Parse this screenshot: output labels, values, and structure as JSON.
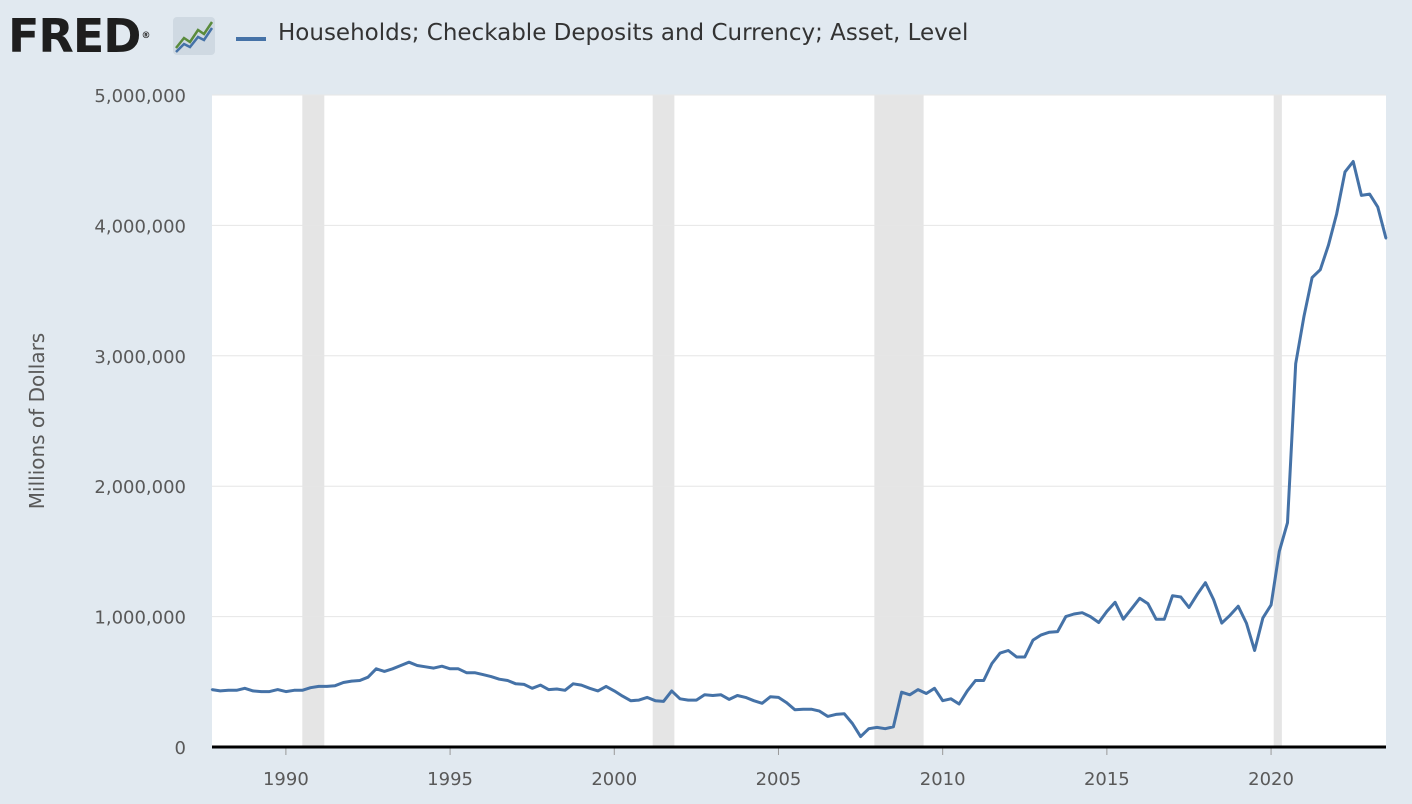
{
  "header": {
    "logo_text": "FRED",
    "logo_mark": "®",
    "logo_icon": "line-chart-icon",
    "series_title": "Households; Checkable Deposits and Currency; Asset, Level"
  },
  "colors": {
    "background": "#e1e9f0",
    "plot_background": "#ffffff",
    "series": "#4572a7",
    "recession": "#e5e5e5",
    "gridline": "#e6e6e6",
    "axis": "#000000"
  },
  "chart_data": {
    "type": "line",
    "title": "Households; Checkable Deposits and Currency; Asset, Level",
    "xlabel": "",
    "ylabel": "Millions of Dollars",
    "xlim": [
      1987.75,
      2023.5
    ],
    "ylim": [
      0,
      5000000
    ],
    "grid": true,
    "legend": "top-left",
    "x_ticks": [
      1990,
      1995,
      2000,
      2005,
      2010,
      2015,
      2020
    ],
    "y_ticks": [
      0,
      1000000,
      2000000,
      3000000,
      4000000,
      5000000
    ],
    "y_tick_labels": [
      "0",
      "1,000,000",
      "2,000,000",
      "3,000,000",
      "4,000,000",
      "5,000,000"
    ],
    "recessions": [
      [
        1990.5,
        1991.17
      ],
      [
        2001.17,
        2001.83
      ],
      [
        2007.92,
        2009.42
      ],
      [
        2020.08,
        2020.33
      ]
    ],
    "series": [
      {
        "name": "Households; Checkable Deposits and Currency; Asset, Level",
        "x": [
          1987.75,
          1988.0,
          1988.25,
          1988.5,
          1988.75,
          1989.0,
          1989.25,
          1989.5,
          1989.75,
          1990.0,
          1990.25,
          1990.5,
          1990.75,
          1991.0,
          1991.25,
          1991.5,
          1991.75,
          1992.0,
          1992.25,
          1992.5,
          1992.75,
          1993.0,
          1993.25,
          1993.5,
          1993.75,
          1994.0,
          1994.25,
          1994.5,
          1994.75,
          1995.0,
          1995.25,
          1995.5,
          1995.75,
          1996.0,
          1996.25,
          1996.5,
          1996.75,
          1997.0,
          1997.25,
          1997.5,
          1997.75,
          1998.0,
          1998.25,
          1998.5,
          1998.75,
          1999.0,
          1999.25,
          1999.5,
          1999.75,
          2000.0,
          2000.25,
          2000.5,
          2000.75,
          2001.0,
          2001.25,
          2001.5,
          2001.75,
          2002.0,
          2002.25,
          2002.5,
          2002.75,
          2003.0,
          2003.25,
          2003.5,
          2003.75,
          2004.0,
          2004.25,
          2004.5,
          2004.75,
          2005.0,
          2005.25,
          2005.5,
          2005.75,
          2006.0,
          2006.25,
          2006.5,
          2006.75,
          2007.0,
          2007.25,
          2007.5,
          2007.75,
          2008.0,
          2008.25,
          2008.5,
          2008.75,
          2009.0,
          2009.25,
          2009.5,
          2009.75,
          2010.0,
          2010.25,
          2010.5,
          2010.75,
          2011.0,
          2011.25,
          2011.5,
          2011.75,
          2012.0,
          2012.25,
          2012.5,
          2012.75,
          2013.0,
          2013.25,
          2013.5,
          2013.75,
          2014.0,
          2014.25,
          2014.5,
          2014.75,
          2015.0,
          2015.25,
          2015.5,
          2015.75,
          2016.0,
          2016.25,
          2016.5,
          2016.75,
          2017.0,
          2017.25,
          2017.5,
          2017.75,
          2018.0,
          2018.25,
          2018.5,
          2018.75,
          2019.0,
          2019.25,
          2019.5,
          2019.75,
          2020.0,
          2020.25,
          2020.5,
          2020.75,
          2021.0,
          2021.25,
          2021.5,
          2021.75,
          2022.0,
          2022.25,
          2022.5,
          2022.75,
          2023.0,
          2023.25,
          2023.5
        ],
        "values": [
          440000,
          430000,
          435000,
          435000,
          450000,
          430000,
          425000,
          425000,
          440000,
          425000,
          435000,
          435000,
          455000,
          465000,
          465000,
          470000,
          495000,
          505000,
          510000,
          535000,
          600000,
          580000,
          600000,
          625000,
          650000,
          625000,
          615000,
          605000,
          620000,
          600000,
          600000,
          570000,
          570000,
          555000,
          540000,
          520000,
          510000,
          485000,
          480000,
          450000,
          475000,
          440000,
          445000,
          435000,
          485000,
          475000,
          450000,
          430000,
          465000,
          430000,
          390000,
          355000,
          360000,
          380000,
          355000,
          350000,
          430000,
          370000,
          360000,
          360000,
          400000,
          395000,
          400000,
          365000,
          395000,
          380000,
          355000,
          335000,
          385000,
          380000,
          340000,
          285000,
          290000,
          290000,
          275000,
          235000,
          250000,
          255000,
          180000,
          80000,
          140000,
          150000,
          140000,
          155000,
          420000,
          400000,
          440000,
          410000,
          450000,
          355000,
          370000,
          330000,
          430000,
          510000,
          510000,
          640000,
          720000,
          740000,
          690000,
          690000,
          820000,
          860000,
          880000,
          885000,
          1000000,
          1020000,
          1030000,
          1000000,
          955000,
          1040000,
          1110000,
          980000,
          1060000,
          1140000,
          1100000,
          980000,
          980000,
          1160000,
          1150000,
          1070000,
          1170000,
          1260000,
          1130000,
          950000,
          1010000,
          1080000,
          950000,
          740000,
          990000,
          1090000,
          1500000,
          1720000,
          2940000,
          3300000,
          3600000,
          3660000,
          3850000,
          4090000,
          4410000,
          4490000,
          4230000,
          4240000,
          4140000,
          3900000
        ]
      }
    ]
  }
}
